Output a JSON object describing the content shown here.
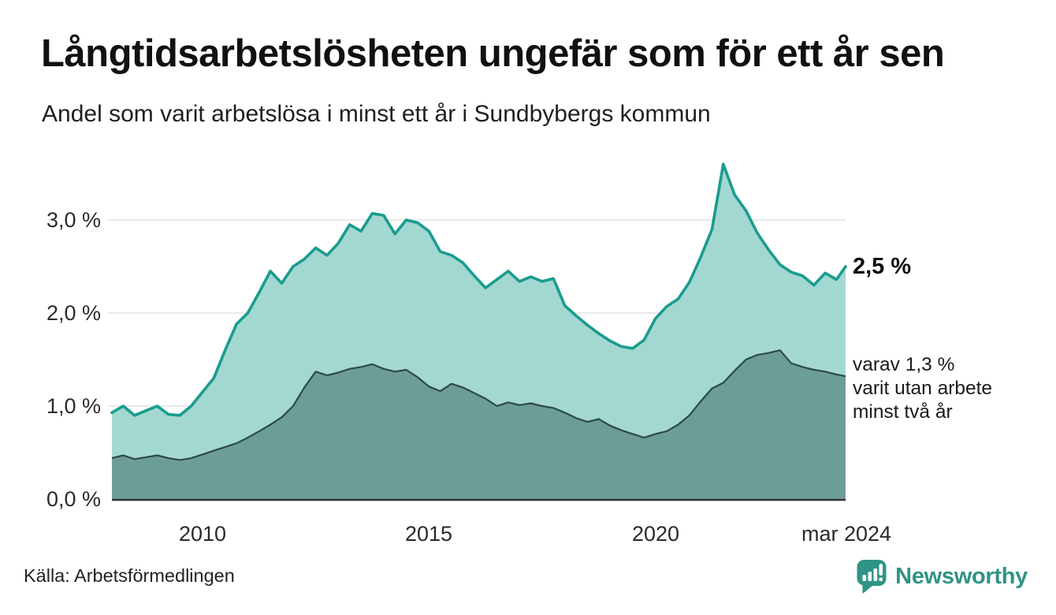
{
  "title": "Långtidsarbetslösheten ungefär som för ett år sen",
  "subtitle": "Andel som varit arbetslösa i minst ett år i Sundbybergs kommun",
  "source": "Källa: Arbetsförmedlingen",
  "brand": {
    "name": "Newsworthy",
    "icon": "bar-chart-pin-icon"
  },
  "annotations": {
    "latest_value": "2,5 %",
    "secondary_line1": "varav 1,3 %",
    "secondary_line2": "varit utan arbete",
    "secondary_line3": "minst två år"
  },
  "colors": {
    "primary_line": "#1a9c8e",
    "primary_fill": "#a3d8d1",
    "secondary_line": "#2d4a45",
    "secondary_fill": "#6d9d97",
    "gridline": "#e2e2e2",
    "baseline": "#333333",
    "brand_teal": "#2e9486",
    "text": "#1a1a1a"
  },
  "chart_data": {
    "type": "area",
    "title": "Långtidsarbetslösheten ungefär som för ett år sen",
    "subtitle": "Andel som varit arbetslösa i minst ett år i Sundbybergs kommun",
    "unit": "%",
    "grid": true,
    "legend": "none",
    "x_axis": {
      "range": [
        2008,
        2024.2
      ],
      "tick_labels": [
        "2010",
        "2015",
        "2020",
        "mar 2024"
      ],
      "tick_positions": [
        2010,
        2015,
        2020,
        2024.2
      ]
    },
    "y_axis": {
      "range": [
        0,
        3.75
      ],
      "tick_labels": [
        "3,0 %",
        "2,0 %",
        "1,0 %",
        "0,0 %"
      ],
      "tick_values": [
        3,
        2,
        1,
        0
      ]
    },
    "x": [
      2008.0,
      2008.25,
      2008.5,
      2008.75,
      2009.0,
      2009.25,
      2009.5,
      2009.75,
      2010.0,
      2010.25,
      2010.5,
      2010.75,
      2011.0,
      2011.25,
      2011.5,
      2011.75,
      2012.0,
      2012.25,
      2012.5,
      2012.75,
      2013.0,
      2013.25,
      2013.5,
      2013.75,
      2014.0,
      2014.25,
      2014.5,
      2014.75,
      2015.0,
      2015.25,
      2015.5,
      2015.75,
      2016.0,
      2016.25,
      2016.5,
      2016.75,
      2017.0,
      2017.25,
      2017.5,
      2017.75,
      2018.0,
      2018.25,
      2018.5,
      2018.75,
      2019.0,
      2019.25,
      2019.5,
      2019.75,
      2020.0,
      2020.25,
      2020.5,
      2020.75,
      2021.0,
      2021.25,
      2021.5,
      2021.75,
      2022.0,
      2022.25,
      2022.5,
      2022.75,
      2023.0,
      2023.25,
      2023.5,
      2023.75,
      2024.0,
      2024.2
    ],
    "series": [
      {
        "name": "Arbetslösa minst ett år",
        "latest_label": "2,5 %",
        "latest_value": 2.5,
        "values": [
          0.93,
          1.0,
          0.9,
          0.95,
          1.0,
          0.91,
          0.9,
          1.0,
          1.15,
          1.3,
          1.6,
          1.88,
          2.0,
          2.22,
          2.45,
          2.32,
          2.5,
          2.58,
          2.7,
          2.62,
          2.75,
          2.95,
          2.88,
          3.07,
          3.05,
          2.85,
          3.0,
          2.97,
          2.88,
          2.66,
          2.62,
          2.54,
          2.4,
          2.27,
          2.36,
          2.45,
          2.34,
          2.39,
          2.34,
          2.37,
          2.08,
          1.97,
          1.87,
          1.78,
          1.7,
          1.64,
          1.62,
          1.71,
          1.94,
          2.07,
          2.15,
          2.33,
          2.6,
          2.9,
          3.6,
          3.27,
          3.1,
          2.86,
          2.68,
          2.52,
          2.44,
          2.4,
          2.3,
          2.43,
          2.36,
          2.5
        ]
      },
      {
        "name": "Varav utan arbete minst två år",
        "latest_label": "1,3 %",
        "latest_value": 1.3,
        "values": [
          0.44,
          0.47,
          0.43,
          0.45,
          0.47,
          0.44,
          0.42,
          0.44,
          0.48,
          0.52,
          0.56,
          0.6,
          0.66,
          0.73,
          0.8,
          0.88,
          1.0,
          1.2,
          1.37,
          1.33,
          1.36,
          1.4,
          1.42,
          1.45,
          1.4,
          1.37,
          1.39,
          1.31,
          1.21,
          1.16,
          1.24,
          1.2,
          1.14,
          1.08,
          1.0,
          1.04,
          1.01,
          1.03,
          1.0,
          0.98,
          0.93,
          0.87,
          0.83,
          0.86,
          0.79,
          0.74,
          0.7,
          0.66,
          0.7,
          0.73,
          0.8,
          0.9,
          1.05,
          1.19,
          1.25,
          1.38,
          1.5,
          1.55,
          1.57,
          1.6,
          1.46,
          1.42,
          1.39,
          1.37,
          1.34,
          1.32
        ]
      }
    ]
  }
}
